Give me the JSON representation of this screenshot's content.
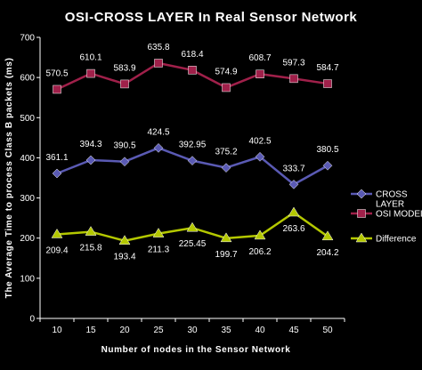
{
  "chart_data": {
    "type": "line",
    "title": "OSI-CROSS LAYER In Real Sensor Network",
    "xlabel": "Number of nodes in the Sensor Network",
    "ylabel": "The Average Time to process Class B packets (ms)",
    "ylim": [
      0,
      700
    ],
    "yticks": [
      "0",
      "100",
      "200",
      "300",
      "400",
      "500",
      "600",
      "700"
    ],
    "categories": [
      "10",
      "15",
      "20",
      "25",
      "30",
      "35",
      "40",
      "45",
      "50"
    ],
    "grid": "none",
    "legend_position": "right",
    "series": [
      {
        "name": "CROSS LAYER",
        "color": "#5a5ab4",
        "marker": "diamond",
        "values": [
          361.1,
          394.3,
          390.5,
          424.5,
          392.95,
          375.2,
          402.5,
          333.7,
          380.5
        ],
        "labels": [
          "361.1",
          "394.3",
          "390.5",
          "424.5",
          "392.95",
          "375.2",
          "402.5",
          "333.7",
          "380.5"
        ]
      },
      {
        "name": "OSI MODEL",
        "color": "#a0204a",
        "marker": "square",
        "values": [
          570.5,
          610.1,
          583.9,
          635.8,
          618.4,
          574.9,
          608.7,
          597.3,
          584.7
        ],
        "labels": [
          "570.5",
          "610.1",
          "583.9",
          "635.8",
          "618.4",
          "574.9",
          "608.7",
          "597.3",
          "584.7"
        ]
      },
      {
        "name": "Difference",
        "color": "#b4c800",
        "marker": "triangle",
        "values": [
          209.4,
          215.8,
          193.4,
          211.3,
          225.45,
          199.7,
          206.2,
          263.6,
          204.2
        ],
        "labels": [
          "209.4",
          "215.8",
          "193.4",
          "211.3",
          "225.45",
          "199.7",
          "206.2",
          "263.6",
          "204.2"
        ]
      }
    ]
  }
}
